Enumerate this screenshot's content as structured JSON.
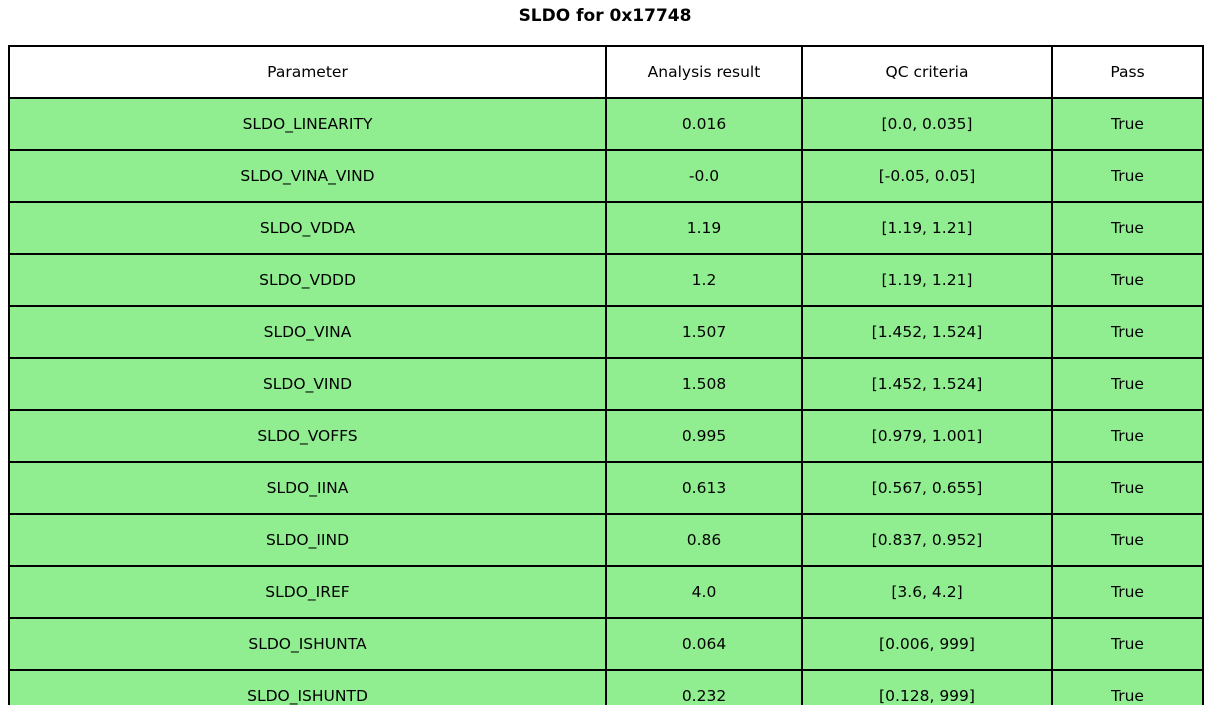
{
  "chart_data": {
    "type": "table",
    "title": "SLDO for 0x17748",
    "columns": [
      "Parameter",
      "Analysis result",
      "QC criteria",
      "Pass"
    ],
    "rows": [
      [
        "SLDO_LINEARITY",
        "0.016",
        "[0.0, 0.035]",
        "True"
      ],
      [
        "SLDO_VINA_VIND",
        "-0.0",
        "[-0.05, 0.05]",
        "True"
      ],
      [
        "SLDO_VDDA",
        "1.19",
        "[1.19, 1.21]",
        "True"
      ],
      [
        "SLDO_VDDD",
        "1.2",
        "[1.19, 1.21]",
        "True"
      ],
      [
        "SLDO_VINA",
        "1.507",
        "[1.452, 1.524]",
        "True"
      ],
      [
        "SLDO_VIND",
        "1.508",
        "[1.452, 1.524]",
        "True"
      ],
      [
        "SLDO_VOFFS",
        "0.995",
        "[0.979, 1.001]",
        "True"
      ],
      [
        "SLDO_IINA",
        "0.613",
        "[0.567, 0.655]",
        "True"
      ],
      [
        "SLDO_IIND",
        "0.86",
        "[0.837, 0.952]",
        "True"
      ],
      [
        "SLDO_IREF",
        "4.0",
        "[3.6, 4.2]",
        "True"
      ],
      [
        "SLDO_ISHUNTA",
        "0.064",
        "[0.006, 999]",
        "True"
      ],
      [
        "SLDO_ISHUNTD",
        "0.232",
        "[0.128, 999]",
        "True"
      ]
    ],
    "layout": {
      "legend": "none",
      "grid": "table-borders",
      "header_position": "top"
    },
    "colors": {
      "pass_row_background": "#90EE90",
      "header_background": "#ffffff",
      "border": "#000000",
      "text": "#000000"
    }
  }
}
